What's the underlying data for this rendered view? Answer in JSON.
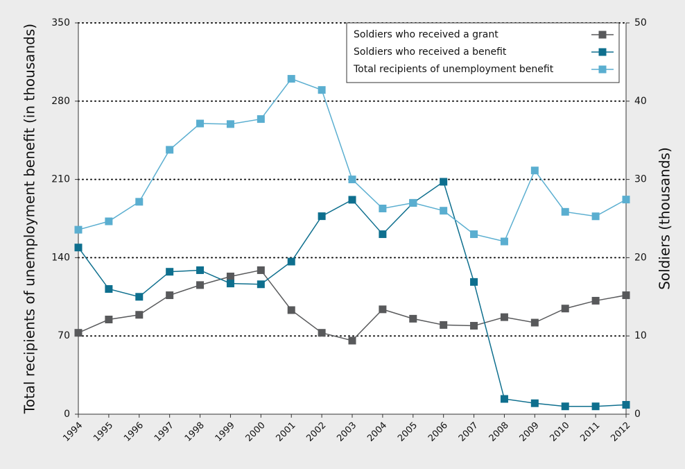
{
  "chart_data": {
    "type": "line",
    "y_label": "Total recipients of unemployment benefit (in thousands)",
    "y2_label": "Soldiers (thousands)",
    "categories": [
      "1994",
      "1995",
      "1996",
      "1997",
      "1998",
      "1999",
      "2000",
      "2001",
      "2002",
      "2003",
      "2004",
      "2005",
      "2006",
      "2007",
      "2008",
      "2009",
      "2010",
      "2011",
      "2012"
    ],
    "ylim": [
      0,
      350
    ],
    "yticks": [
      0,
      70,
      140,
      210,
      280,
      350
    ],
    "y2lim": [
      0,
      50
    ],
    "y2ticks": [
      0,
      10,
      20,
      30,
      40,
      50
    ],
    "grid": true,
    "legend": "top-right",
    "series": [
      {
        "name": "Soldiers who received a grant",
        "color": "#58595b",
        "axis": "y2",
        "values": [
          10.4,
          12.1,
          12.7,
          15.2,
          16.5,
          17.6,
          18.4,
          13.3,
          10.4,
          9.4,
          13.4,
          12.2,
          11.4,
          11.3,
          12.4,
          11.7,
          13.5,
          14.5,
          15.2
        ]
      },
      {
        "name": "Soldiers who received a benefit",
        "color": "#0e6f8e",
        "axis": "y2",
        "values": [
          21.3,
          16.0,
          15.0,
          18.2,
          18.4,
          16.7,
          16.6,
          19.5,
          25.3,
          27.4,
          23.0,
          27.0,
          29.7,
          16.9,
          1.95,
          1.4,
          1.0,
          1.0,
          1.2
        ]
      },
      {
        "name": "Total recipients of unemployment benefit",
        "color": "#5aaed0",
        "values": [
          165,
          172.5,
          190,
          236.5,
          260,
          259.5,
          264,
          300,
          290,
          210,
          184,
          189,
          182,
          161,
          154.5,
          218,
          181,
          177,
          192
        ]
      }
    ]
  }
}
